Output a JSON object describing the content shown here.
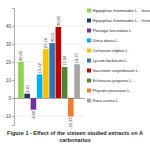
{
  "chart_data": {
    "type": "bar",
    "title": "Figure 1 - Effect of the sixteen studied extracts on A carbonarius",
    "categories": [
      null
    ],
    "series": [
      {
        "name": "Hippophae rhamnoides L. - leaves",
        "color": "#92d050",
        "values": [
          20.0
        ],
        "value_labels": [
          "20,00"
        ]
      },
      {
        "name": "Hippophae rhamnoides L. - fruits",
        "color": "#1f3864",
        "values": [
          2.41
        ],
        "value_labels": [
          "2,41"
        ]
      },
      {
        "name": "Plantago lanceolata L.",
        "color": "#7030a0",
        "values": [
          -6.5
        ],
        "value_labels": [
          "-6,50"
        ]
      },
      {
        "name": "Urtica dioica L.",
        "color": "#00b0f0",
        "values": [
          13.12
        ],
        "value_labels": [
          "13,12"
        ]
      },
      {
        "name": "Cichorium intybus L.",
        "color": "#ffc000",
        "values": [
          27.14
        ],
        "value_labels": [
          "27,14"
        ]
      },
      {
        "name": "Lycium barbarum L.",
        "color": "#2e75b6",
        "values": [
          30.51
        ],
        "value_labels": [
          "30,51"
        ]
      },
      {
        "name": "Vaccinium corymbosum L.",
        "color": "#c00000",
        "values": [
          39.45
        ],
        "value_labels": [
          "39,45"
        ]
      },
      {
        "name": "Echinacea purpurea L.",
        "color": "#548235",
        "values": [
          17.24
        ],
        "value_labels": [
          "17,24"
        ]
      },
      {
        "name": "Physalis peruviana L.",
        "color": "#ed7d31",
        "values": [
          -10.33
        ],
        "value_labels": [
          "-10,33"
        ]
      },
      {
        "name": "Rosa canina L.",
        "color": "#a5a5a5",
        "values": [
          18.75
        ],
        "value_labels": [
          "18,75"
        ]
      }
    ],
    "ylim": [
      -15,
      50
    ],
    "yticks": [
      -10,
      0,
      10,
      20,
      30,
      40
    ],
    "grid": true,
    "data_labels": true,
    "legend": "right"
  }
}
